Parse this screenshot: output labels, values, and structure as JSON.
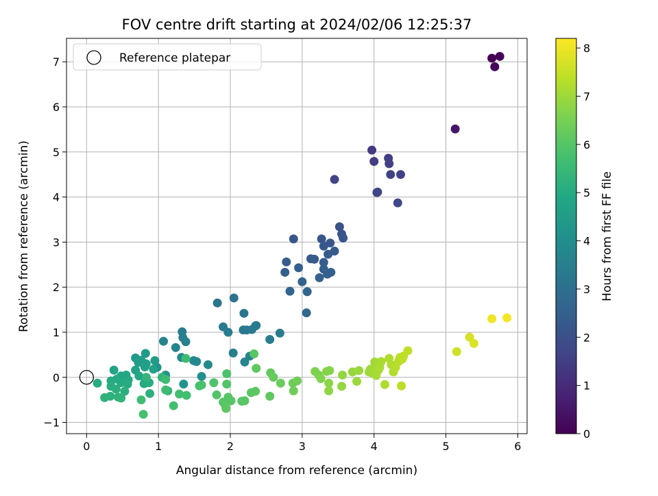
{
  "chart_data": {
    "type": "scatter",
    "title": "FOV centre drift starting at 2024/02/06 12:25:37",
    "xlabel": "Angular distance from reference (arcmin)",
    "ylabel": "Rotation from reference (arcmin)",
    "xlim": [
      -0.28,
      6.13
    ],
    "ylim": [
      -1.25,
      7.52
    ],
    "xticks": [
      0,
      1,
      2,
      3,
      4,
      5,
      6
    ],
    "xtick_labels": [
      "0",
      "1",
      "2",
      "3",
      "4",
      "5",
      "6"
    ],
    "yticks": [
      -1,
      0,
      1,
      2,
      3,
      4,
      5,
      6,
      7
    ],
    "ytick_labels": [
      "−1",
      "0",
      "1",
      "2",
      "3",
      "4",
      "5",
      "6",
      "7"
    ],
    "grid": true,
    "legend": {
      "position": "top-left",
      "entries": [
        "Reference platepar"
      ]
    },
    "reference_point": {
      "x": 0,
      "y": 0
    },
    "colorbar": {
      "label": "Hours from first FF file",
      "colormap": "viridis",
      "range": [
        0,
        8.2
      ],
      "ticks": [
        0,
        1,
        2,
        3,
        4,
        5,
        6,
        7,
        8
      ],
      "tick_labels": [
        "0",
        "1",
        "2",
        "3",
        "4",
        "5",
        "6",
        "7",
        "8"
      ]
    },
    "points": [
      {
        "x": 5.64,
        "y": 7.08,
        "c": 0.05
      },
      {
        "x": 5.75,
        "y": 7.12,
        "c": 0.1
      },
      {
        "x": 5.68,
        "y": 6.89,
        "c": 0.15
      },
      {
        "x": 5.13,
        "y": 5.51,
        "c": 0.5
      },
      {
        "x": 3.97,
        "y": 5.04,
        "c": 1.4
      },
      {
        "x": 4.2,
        "y": 4.86,
        "c": 1.5
      },
      {
        "x": 4.21,
        "y": 4.74,
        "c": 1.5
      },
      {
        "x": 4.0,
        "y": 4.79,
        "c": 1.45
      },
      {
        "x": 4.23,
        "y": 4.5,
        "c": 1.6
      },
      {
        "x": 4.37,
        "y": 4.5,
        "c": 1.6
      },
      {
        "x": 3.45,
        "y": 4.39,
        "c": 1.65
      },
      {
        "x": 4.05,
        "y": 4.11,
        "c": 1.7
      },
      {
        "x": 4.04,
        "y": 4.1,
        "c": 1.7
      },
      {
        "x": 4.33,
        "y": 3.87,
        "c": 1.75
      },
      {
        "x": 3.52,
        "y": 3.34,
        "c": 2.05
      },
      {
        "x": 3.55,
        "y": 3.18,
        "c": 2.1
      },
      {
        "x": 3.57,
        "y": 3.09,
        "c": 2.15
      },
      {
        "x": 2.88,
        "y": 3.07,
        "c": 2.2
      },
      {
        "x": 3.27,
        "y": 3.07,
        "c": 2.2
      },
      {
        "x": 3.39,
        "y": 2.98,
        "c": 2.25
      },
      {
        "x": 3.3,
        "y": 2.91,
        "c": 2.25
      },
      {
        "x": 3.45,
        "y": 2.8,
        "c": 2.3
      },
      {
        "x": 3.36,
        "y": 2.73,
        "c": 2.3
      },
      {
        "x": 3.12,
        "y": 2.63,
        "c": 2.35
      },
      {
        "x": 3.17,
        "y": 2.62,
        "c": 2.35
      },
      {
        "x": 2.78,
        "y": 2.56,
        "c": 2.4
      },
      {
        "x": 3.3,
        "y": 2.55,
        "c": 2.4
      },
      {
        "x": 2.95,
        "y": 2.43,
        "c": 2.45
      },
      {
        "x": 3.3,
        "y": 2.4,
        "c": 2.45
      },
      {
        "x": 2.76,
        "y": 2.33,
        "c": 2.5
      },
      {
        "x": 3.4,
        "y": 2.33,
        "c": 2.5
      },
      {
        "x": 3.35,
        "y": 2.29,
        "c": 2.5
      },
      {
        "x": 3.24,
        "y": 2.21,
        "c": 2.55
      },
      {
        "x": 3.0,
        "y": 2.12,
        "c": 2.6
      },
      {
        "x": 2.83,
        "y": 1.91,
        "c": 2.65
      },
      {
        "x": 3.07,
        "y": 1.9,
        "c": 2.65
      },
      {
        "x": 3.06,
        "y": 1.43,
        "c": 2.75
      },
      {
        "x": 2.05,
        "y": 1.76,
        "c": 3.1
      },
      {
        "x": 1.82,
        "y": 1.65,
        "c": 3.15
      },
      {
        "x": 2.19,
        "y": 1.42,
        "c": 3.2
      },
      {
        "x": 2.36,
        "y": 1.15,
        "c": 3.3
      },
      {
        "x": 2.35,
        "y": 1.14,
        "c": 3.3
      },
      {
        "x": 1.9,
        "y": 1.12,
        "c": 3.35
      },
      {
        "x": 2.18,
        "y": 1.05,
        "c": 3.35
      },
      {
        "x": 2.23,
        "y": 1.05,
        "c": 3.35
      },
      {
        "x": 2.3,
        "y": 1.06,
        "c": 3.35
      },
      {
        "x": 1.33,
        "y": 1.01,
        "c": 3.45
      },
      {
        "x": 1.97,
        "y": 1.0,
        "c": 3.45
      },
      {
        "x": 2.69,
        "y": 0.98,
        "c": 3.4
      },
      {
        "x": 1.34,
        "y": 0.88,
        "c": 3.55
      },
      {
        "x": 2.55,
        "y": 0.84,
        "c": 3.45
      },
      {
        "x": 1.07,
        "y": 0.8,
        "c": 3.65
      },
      {
        "x": 1.38,
        "y": 0.79,
        "c": 3.6
      },
      {
        "x": 1.24,
        "y": 0.66,
        "c": 3.7
      },
      {
        "x": 2.04,
        "y": 0.54,
        "c": 3.55
      },
      {
        "x": 2.27,
        "y": 0.47,
        "c": 3.6
      },
      {
        "x": 1.32,
        "y": 0.44,
        "c": 3.8
      },
      {
        "x": 1.49,
        "y": 0.37,
        "c": 3.85
      },
      {
        "x": 1.53,
        "y": 0.35,
        "c": 3.85
      },
      {
        "x": 2.2,
        "y": 0.34,
        "c": 3.7
      },
      {
        "x": 1.69,
        "y": 0.28,
        "c": 3.9
      },
      {
        "x": 0.98,
        "y": 0.22,
        "c": 4.1
      },
      {
        "x": 1.1,
        "y": 0.05,
        "c": 4.2
      },
      {
        "x": 1.6,
        "y": 0.02,
        "c": 4.1
      },
      {
        "x": 1.35,
        "y": -0.15,
        "c": 4.2
      },
      {
        "x": 0.68,
        "y": 0.43,
        "c": 4.4
      },
      {
        "x": 0.82,
        "y": 0.53,
        "c": 4.45
      },
      {
        "x": 0.76,
        "y": 0.38,
        "c": 4.5
      },
      {
        "x": 0.95,
        "y": 0.37,
        "c": 4.5
      },
      {
        "x": 0.72,
        "y": 0.33,
        "c": 4.55
      },
      {
        "x": 0.83,
        "y": 0.3,
        "c": 4.6
      },
      {
        "x": 0.81,
        "y": 0.23,
        "c": 4.65
      },
      {
        "x": 0.68,
        "y": 0.16,
        "c": 4.7
      },
      {
        "x": 0.38,
        "y": 0.16,
        "c": 4.75
      },
      {
        "x": 0.93,
        "y": 0.18,
        "c": 4.7
      },
      {
        "x": 0.55,
        "y": 0.05,
        "c": 4.85
      },
      {
        "x": 0.48,
        "y": 0.03,
        "c": 4.85
      },
      {
        "x": 0.73,
        "y": 0.03,
        "c": 4.85
      },
      {
        "x": 0.42,
        "y": -0.04,
        "c": 4.95
      },
      {
        "x": 0.58,
        "y": -0.06,
        "c": 4.95
      },
      {
        "x": 0.34,
        "y": -0.08,
        "c": 5.0
      },
      {
        "x": 0.82,
        "y": -0.05,
        "c": 4.95
      },
      {
        "x": 0.48,
        "y": -0.12,
        "c": 5.0
      },
      {
        "x": 0.15,
        "y": -0.13,
        "c": 5.05
      },
      {
        "x": 0.57,
        "y": -0.15,
        "c": 5.05
      },
      {
        "x": 0.34,
        "y": -0.2,
        "c": 5.1
      },
      {
        "x": 0.8,
        "y": -0.14,
        "c": 5.0
      },
      {
        "x": 0.87,
        "y": -0.12,
        "c": 5.05
      },
      {
        "x": 0.41,
        "y": -0.26,
        "c": 5.15
      },
      {
        "x": 0.53,
        "y": -0.31,
        "c": 5.15
      },
      {
        "x": 0.25,
        "y": -0.45,
        "c": 5.25
      },
      {
        "x": 0.33,
        "y": -0.42,
        "c": 5.25
      },
      {
        "x": 0.44,
        "y": -0.44,
        "c": 5.25
      },
      {
        "x": 0.48,
        "y": -0.46,
        "c": 5.3
      },
      {
        "x": 0.88,
        "y": -0.36,
        "c": 5.2
      },
      {
        "x": 1.13,
        "y": -0.3,
        "c": 5.3
      },
      {
        "x": 1.05,
        "y": 0.0,
        "c": 5.35
      },
      {
        "x": 0.83,
        "y": 0.0,
        "c": 5.35
      },
      {
        "x": 1.38,
        "y": 0.42,
        "c": 5.6
      },
      {
        "x": 1.1,
        "y": -0.28,
        "c": 5.6
      },
      {
        "x": 0.76,
        "y": -0.5,
        "c": 5.65
      },
      {
        "x": 1.1,
        "y": -0.05,
        "c": 5.6
      },
      {
        "x": 1.21,
        "y": -0.63,
        "c": 5.7
      },
      {
        "x": 0.79,
        "y": -0.82,
        "c": 5.75
      },
      {
        "x": 1.29,
        "y": -0.37,
        "c": 5.7
      },
      {
        "x": 1.39,
        "y": -0.4,
        "c": 5.7
      },
      {
        "x": 1.57,
        "y": -0.19,
        "c": 5.75
      },
      {
        "x": 1.6,
        "y": -0.17,
        "c": 5.8
      },
      {
        "x": 1.95,
        "y": 0.08,
        "c": 5.85
      },
      {
        "x": 1.77,
        "y": -0.12,
        "c": 5.9
      },
      {
        "x": 1.95,
        "y": -0.15,
        "c": 5.95
      },
      {
        "x": 1.81,
        "y": -0.39,
        "c": 5.95
      },
      {
        "x": 1.97,
        "y": -0.44,
        "c": 6.0
      },
      {
        "x": 2.01,
        "y": -0.52,
        "c": 6.0
      },
      {
        "x": 1.9,
        "y": -0.55,
        "c": 6.0
      },
      {
        "x": 2.16,
        "y": -0.53,
        "c": 6.05
      },
      {
        "x": 2.2,
        "y": -0.52,
        "c": 6.05
      },
      {
        "x": 1.93,
        "y": -0.62,
        "c": 6.05
      },
      {
        "x": 1.94,
        "y": -0.69,
        "c": 6.1
      },
      {
        "x": 2.29,
        "y": -0.34,
        "c": 6.1
      },
      {
        "x": 2.35,
        "y": -0.31,
        "c": 6.1
      },
      {
        "x": 2.55,
        "y": -0.42,
        "c": 6.15
      },
      {
        "x": 2.33,
        "y": 0.52,
        "c": 6.05
      },
      {
        "x": 2.36,
        "y": 0.2,
        "c": 6.15
      },
      {
        "x": 2.56,
        "y": 0.1,
        "c": 6.2
      },
      {
        "x": 2.6,
        "y": 0.0,
        "c": 6.25
      },
      {
        "x": 2.7,
        "y": -0.13,
        "c": 6.3
      },
      {
        "x": 2.87,
        "y": -0.13,
        "c": 6.35
      },
      {
        "x": 2.88,
        "y": -0.3,
        "c": 6.4
      },
      {
        "x": 2.93,
        "y": -0.08,
        "c": 6.4
      },
      {
        "x": 3.18,
        "y": 0.13,
        "c": 6.6
      },
      {
        "x": 3.23,
        "y": 0.05,
        "c": 6.6
      },
      {
        "x": 3.26,
        "y": -0.03,
        "c": 6.65
      },
      {
        "x": 3.34,
        "y": 0.13,
        "c": 6.7
      },
      {
        "x": 3.38,
        "y": 0.15,
        "c": 6.7
      },
      {
        "x": 3.37,
        "y": -0.13,
        "c": 6.75
      },
      {
        "x": 3.37,
        "y": -0.3,
        "c": 6.8
      },
      {
        "x": 3.55,
        "y": -0.2,
        "c": 6.85
      },
      {
        "x": 3.56,
        "y": 0.05,
        "c": 6.85
      },
      {
        "x": 3.7,
        "y": 0.12,
        "c": 6.9
      },
      {
        "x": 3.76,
        "y": -0.09,
        "c": 6.95
      },
      {
        "x": 3.79,
        "y": 0.15,
        "c": 6.95
      },
      {
        "x": 3.93,
        "y": 0.12,
        "c": 7.0
      },
      {
        "x": 3.95,
        "y": 0.18,
        "c": 7.0
      },
      {
        "x": 3.98,
        "y": 0.09,
        "c": 7.05
      },
      {
        "x": 4.0,
        "y": 0.22,
        "c": 7.05
      },
      {
        "x": 4.01,
        "y": 0.34,
        "c": 7.05
      },
      {
        "x": 4.02,
        "y": 0.1,
        "c": 7.1
      },
      {
        "x": 4.03,
        "y": 0.04,
        "c": 7.1
      },
      {
        "x": 4.06,
        "y": 0.16,
        "c": 7.1
      },
      {
        "x": 4.07,
        "y": 0.3,
        "c": 7.1
      },
      {
        "x": 4.08,
        "y": 0.22,
        "c": 7.15
      },
      {
        "x": 4.1,
        "y": 0.35,
        "c": 7.15
      },
      {
        "x": 4.15,
        "y": -0.16,
        "c": 7.2
      },
      {
        "x": 4.21,
        "y": 0.42,
        "c": 7.2
      },
      {
        "x": 4.24,
        "y": 0.28,
        "c": 7.2
      },
      {
        "x": 4.27,
        "y": 0.12,
        "c": 7.25
      },
      {
        "x": 4.3,
        "y": 0.22,
        "c": 7.3
      },
      {
        "x": 4.34,
        "y": 0.35,
        "c": 7.3
      },
      {
        "x": 4.36,
        "y": 0.44,
        "c": 7.35
      },
      {
        "x": 4.38,
        "y": -0.19,
        "c": 7.35
      },
      {
        "x": 4.39,
        "y": 0.4,
        "c": 7.35
      },
      {
        "x": 4.41,
        "y": 0.47,
        "c": 7.4
      },
      {
        "x": 4.47,
        "y": 0.59,
        "c": 7.4
      },
      {
        "x": 5.15,
        "y": 0.57,
        "c": 7.6
      },
      {
        "x": 5.33,
        "y": 0.89,
        "c": 7.7
      },
      {
        "x": 5.39,
        "y": 0.75,
        "c": 7.75
      },
      {
        "x": 5.64,
        "y": 1.3,
        "c": 8.0
      },
      {
        "x": 5.85,
        "y": 1.32,
        "c": 8.1
      }
    ]
  }
}
